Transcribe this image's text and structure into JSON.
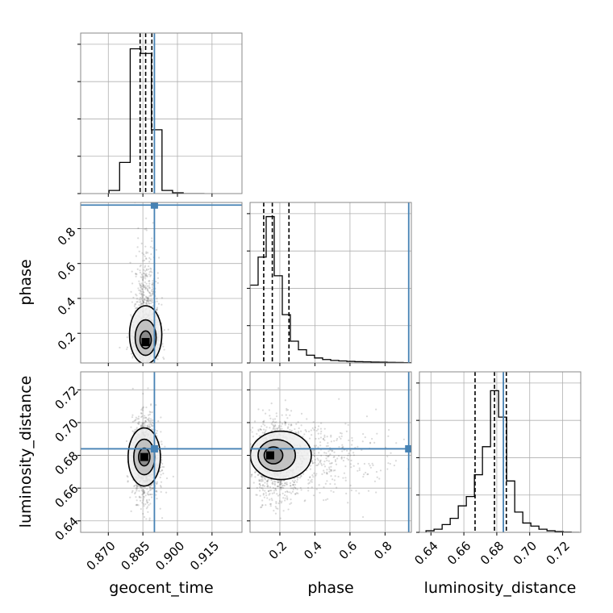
{
  "chart_data": {
    "type": "corner",
    "parameters": [
      "geocent_time",
      "phase",
      "luminosity_distance"
    ],
    "injection": {
      "geocent_time": 0.89,
      "phase": 0.935,
      "luminosity_distance": 0.684,
      "color": "#4682b4"
    },
    "axes": {
      "geocent_time": {
        "label": "geocent_time",
        "range": [
          0.858,
          0.928
        ],
        "ticks": [
          0.87,
          0.885,
          0.9,
          0.915
        ],
        "tick_labels": [
          "0.870",
          "0.885",
          "0.900",
          "0.915"
        ]
      },
      "phase": {
        "label": "phase",
        "range": [
          0.03,
          0.95
        ],
        "ticks": [
          0.2,
          0.4,
          0.6,
          0.8
        ],
        "tick_labels": [
          "0.2",
          "0.4",
          "0.6",
          "0.8"
        ]
      },
      "luminosity_distance": {
        "label": "luminosity_distance",
        "range": [
          0.633,
          0.731
        ],
        "ticks": [
          0.64,
          0.66,
          0.68,
          0.7,
          0.72
        ],
        "tick_labels": [
          "0.64",
          "0.66",
          "0.68",
          "0.70",
          "0.72"
        ]
      }
    },
    "histograms": [
      {
        "parameter": "geocent_time",
        "bin_edges": [
          0.8703,
          0.8749,
          0.8795,
          0.8841,
          0.8887,
          0.8933,
          0.8979,
          0.9025,
          0.9071,
          0.9117
        ],
        "counts": [
          0.02,
          0.2,
          0.93,
          0.9,
          0.41,
          0.02,
          0.005,
          0.0,
          0.0
        ],
        "quantile_lines": [
          0.8838,
          0.8862,
          0.8889
        ],
        "ymax": 1.0
      },
      {
        "parameter": "phase",
        "bin_edges": [
          0.03,
          0.076,
          0.122,
          0.168,
          0.214,
          0.26,
          0.306,
          0.352,
          0.398,
          0.444,
          0.49,
          0.536,
          0.582,
          0.628,
          0.674,
          0.72,
          0.766,
          0.812,
          0.858,
          0.904,
          0.95
        ],
        "counts": [
          0.5,
          0.68,
          0.94,
          0.56,
          0.31,
          0.14,
          0.085,
          0.05,
          0.032,
          0.022,
          0.016,
          0.013,
          0.01,
          0.008,
          0.007,
          0.006,
          0.005,
          0.004,
          0.003,
          0.002
        ],
        "quantile_lines": [
          0.108,
          0.157,
          0.252
        ],
        "ymax": 1.0
      },
      {
        "parameter": "luminosity_distance",
        "bin_edges": [
          0.637,
          0.6419,
          0.6468,
          0.6517,
          0.6566,
          0.6615,
          0.6664,
          0.6713,
          0.6762,
          0.6811,
          0.686,
          0.6909,
          0.6958,
          0.7007,
          0.7056,
          0.7105,
          0.7154,
          0.7203,
          0.7252,
          0.7301
        ],
        "counts": [
          0.01,
          0.02,
          0.05,
          0.09,
          0.17,
          0.23,
          0.37,
          0.55,
          0.91,
          0.74,
          0.33,
          0.13,
          0.06,
          0.04,
          0.02,
          0.01,
          0.005,
          0.002,
          0.0
        ],
        "quantile_lines": [
          0.6668,
          0.6786,
          0.6858
        ],
        "ymax": 1.0
      }
    ],
    "joint": [
      {
        "x": "geocent_time",
        "y": "phase",
        "mean": [
          0.8862,
          0.16
        ],
        "sd": [
          0.0028,
          0.11
        ],
        "skew_y": "right-tail",
        "n_points": 1400,
        "peak": [
          0.8862,
          0.15
        ]
      },
      {
        "x": "geocent_time",
        "y": "luminosity_distance",
        "mean": [
          0.8862,
          0.678
        ],
        "sd": [
          0.0028,
          0.012
        ],
        "n_points": 1400,
        "peak": [
          0.8856,
          0.679
        ]
      },
      {
        "x": "phase",
        "y": "luminosity_distance",
        "mean": [
          0.17,
          0.678
        ],
        "sd": [
          0.11,
          0.012
        ],
        "skew_x": "right-tail",
        "n_points": 1400,
        "peak": [
          0.145,
          0.68
        ]
      }
    ],
    "grid": true,
    "legend": "none"
  }
}
